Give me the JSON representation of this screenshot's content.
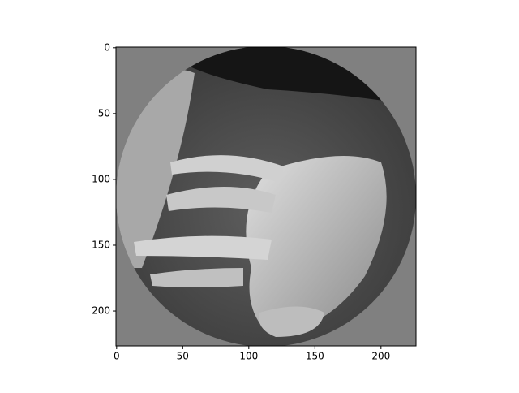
{
  "chart_data": {
    "type": "image",
    "xlim": [
      -0.5,
      226.5
    ],
    "ylim": [
      226.5,
      -0.5
    ],
    "xticks": [
      0,
      50,
      100,
      150,
      200
    ],
    "yticks": [
      0,
      50,
      100,
      150,
      200
    ]
  }
}
